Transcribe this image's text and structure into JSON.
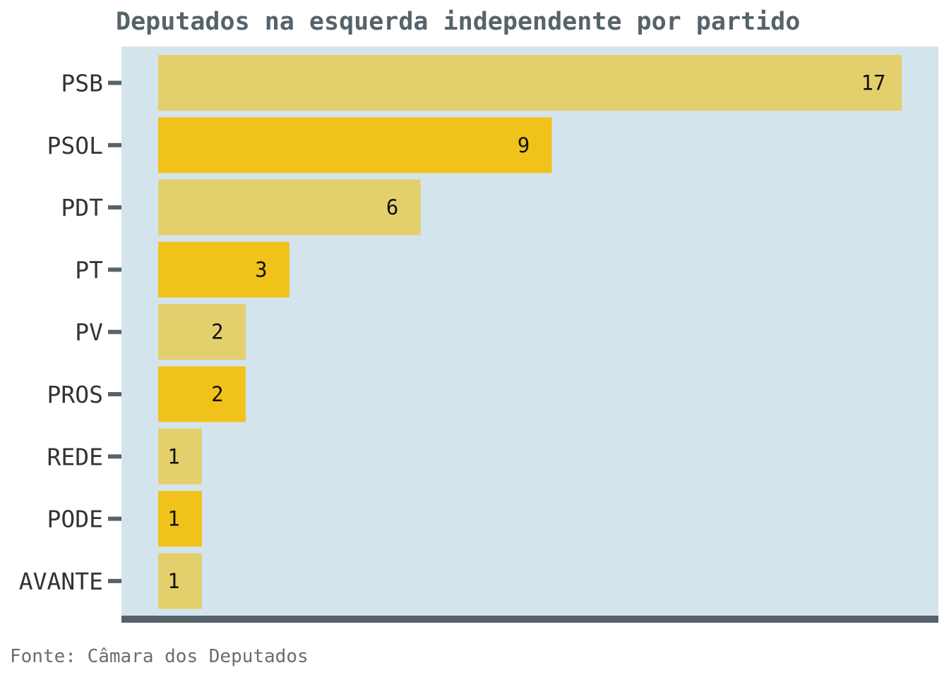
{
  "chart_data": {
    "type": "bar",
    "orientation": "horizontal",
    "title": "Deputados na esquerda independente por partido",
    "source": "Fonte: Câmara dos Deputados",
    "xlabel": "",
    "ylabel": "",
    "categories": [
      "PSB",
      "PSOL",
      "PDT",
      "PT",
      "PV",
      "PROS",
      "REDE",
      "PODE",
      "AVANTE"
    ],
    "values": [
      17,
      9,
      6,
      3,
      2,
      2,
      1,
      1,
      1
    ],
    "value_labels": [
      "17",
      "9",
      "6",
      "3",
      "2",
      "2",
      "1",
      "1",
      "1"
    ],
    "xlim": [
      0,
      17
    ],
    "grid": false,
    "legend": "none",
    "colors": {
      "bar_alternate_a": "#e4cf6d",
      "bar_alternate_b": "#f0c21a",
      "panel_background": "#d4e4ec",
      "axis_line": "#56636b",
      "title": "#56636b"
    }
  }
}
